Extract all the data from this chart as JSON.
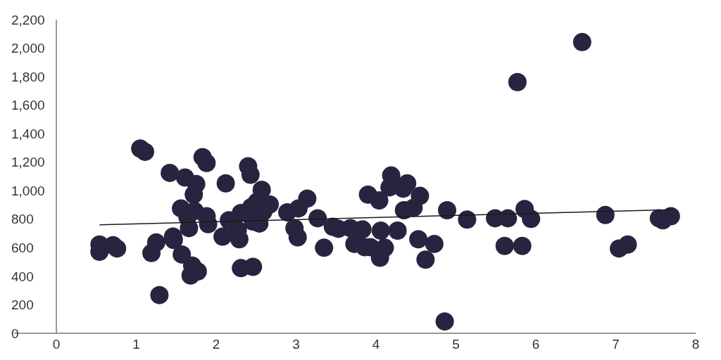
{
  "chart_data": {
    "type": "scatter",
    "xlim": [
      0,
      8
    ],
    "xticks": [
      0,
      1,
      2,
      3,
      4,
      5,
      6,
      7,
      8
    ],
    "ylim": [
      0,
      2200
    ],
    "yticks": [
      0,
      200,
      400,
      600,
      800,
      {
        "value": 1000,
        "label": "1,000"
      },
      {
        "value": 1200,
        "label": "1,200"
      },
      {
        "value": 1400,
        "label": "1,400"
      },
      {
        "value": 1600,
        "label": "1,600"
      },
      {
        "value": 1800,
        "label": "1,800"
      },
      {
        "value": 2000,
        "label": "2,000"
      },
      {
        "value": 2200,
        "label": "2,200"
      }
    ],
    "grid": false,
    "series": [
      {
        "color": "#2a2340",
        "marker": "circle",
        "x": [
          0.54,
          0.54,
          0.71,
          0.76,
          1.05,
          1.11,
          1.19,
          1.25,
          1.29,
          1.42,
          1.46,
          1.47,
          1.56,
          1.57,
          1.61,
          1.64,
          1.66,
          1.68,
          1.7,
          1.73,
          1.75,
          1.77,
          1.72,
          1.83,
          1.88,
          1.88,
          1.9,
          2.08,
          2.12,
          2.16,
          2.27,
          2.29,
          2.31,
          2.31,
          2.4,
          2.43,
          2.46,
          2.44,
          2.46,
          2.51,
          2.54,
          2.57,
          2.59,
          2.67,
          2.89,
          2.98,
          3.02,
          3.03,
          3.14,
          3.27,
          3.35,
          3.46,
          3.53,
          3.68,
          3.73,
          3.83,
          3.86,
          3.93,
          3.9,
          4.05,
          4.04,
          4.06,
          4.11,
          4.19,
          4.17,
          4.34,
          4.39,
          4.35,
          4.47,
          4.55,
          4.27,
          4.53,
          4.62,
          4.73,
          4.86,
          4.89,
          5.14,
          5.49,
          5.65,
          5.61,
          5.77,
          5.83,
          5.86,
          5.94,
          6.58,
          6.87,
          7.04,
          7.15,
          7.54,
          7.59,
          7.69
        ],
        "values": [
          623,
          572,
          618,
          595,
          1296,
          1273,
          563,
          637,
          268,
          1125,
          678,
          655,
          876,
          553,
          1093,
          816,
          738,
          406,
          475,
          858,
          1047,
          434,
          973,
          1236,
          1195,
          821,
          766,
          678,
          1052,
          793,
          724,
          660,
          844,
          457,
          1172,
          1112,
          466,
          886,
          784,
          922,
          770,
          1006,
          853,
          904,
          849,
          738,
          673,
          876,
          945,
          807,
          600,
          747,
          733,
          738,
          627,
          729,
          604,
          604,
          973,
          530,
          932,
          720,
          600,
          1107,
          1024,
          1015,
          1052,
          863,
          881,
          964,
          720,
          660,
          517,
          627,
          83,
          863,
          798,
          807,
          807,
          613,
          1762,
          613,
          872,
          803,
          2043,
          830,
          595,
          623,
          807,
          793,
          821
        ]
      },
      {
        "type": "line",
        "color": "#1a1a1a",
        "x": [
          0.54,
          7.69
        ],
        "values": [
          761,
          867
        ]
      }
    ]
  }
}
